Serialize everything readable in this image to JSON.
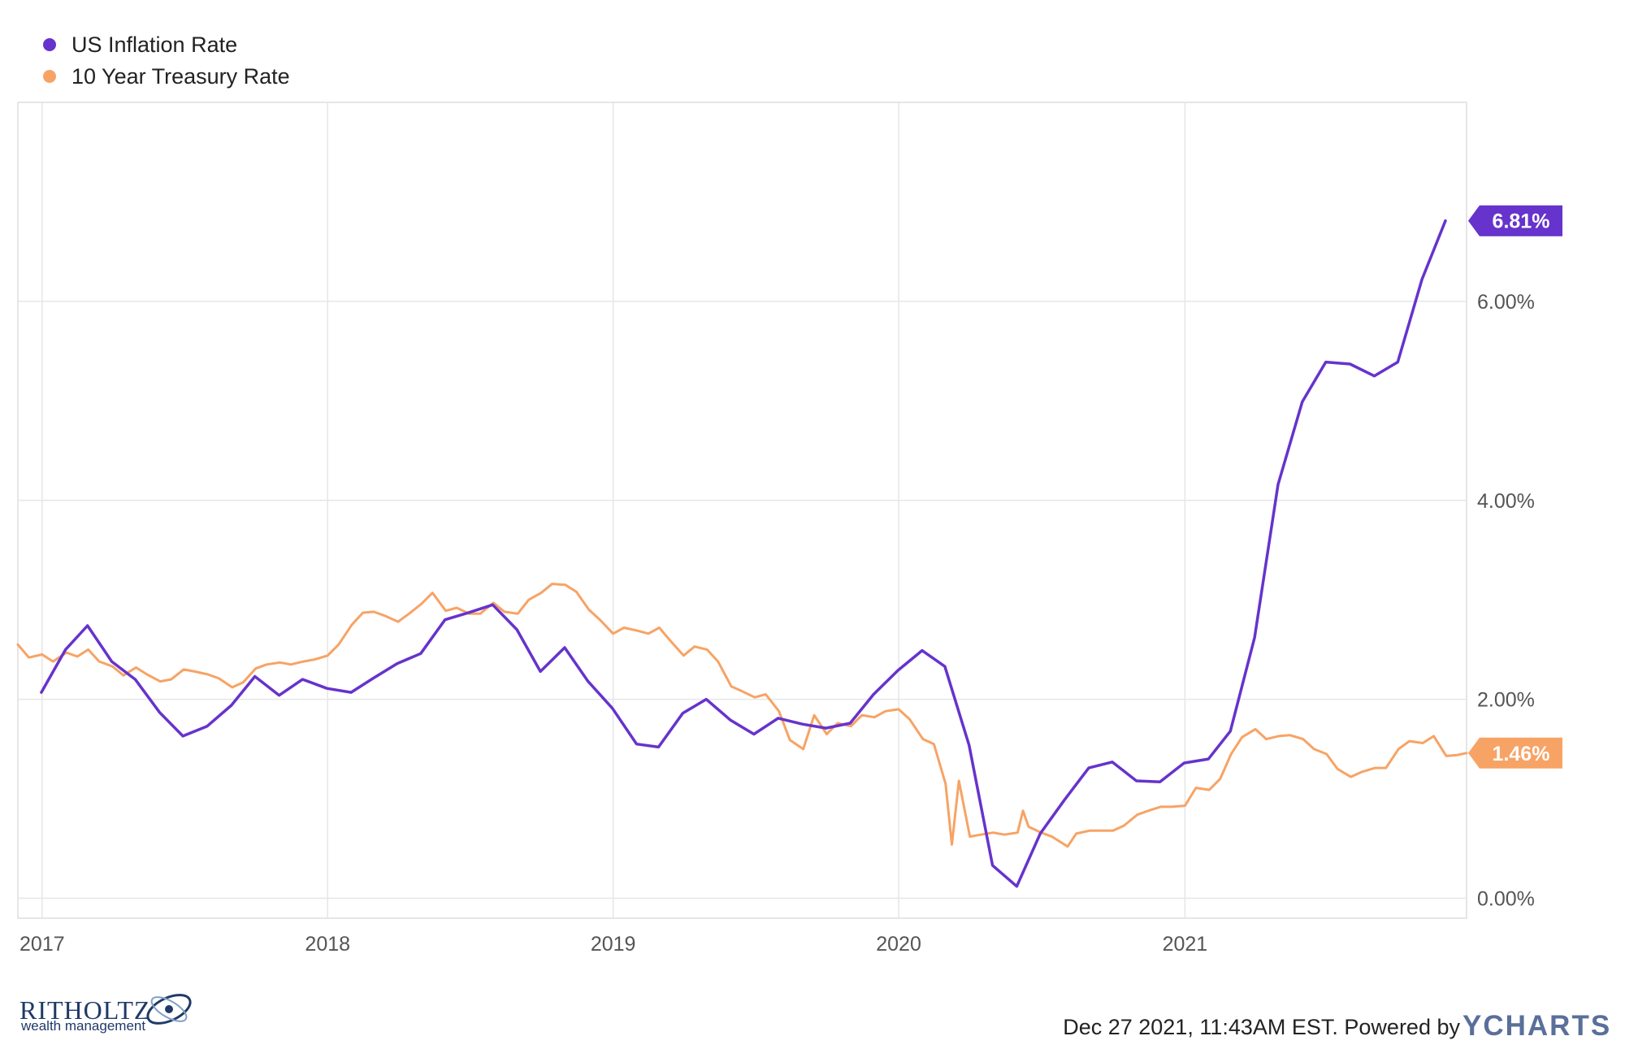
{
  "chart_data": {
    "type": "line",
    "xlabel": "",
    "ylabel": "",
    "x_tick_labels": [
      "2017",
      "2018",
      "2019",
      "2020",
      "2021"
    ],
    "y_tick_labels": [
      "0.00%",
      "2.00%",
      "4.00%",
      "6.00%"
    ],
    "y_ticks": [
      0,
      2,
      4,
      6
    ],
    "ylim": [
      -0.2,
      8.0
    ],
    "xlim": [
      "2016-12-01",
      "2021-12-27"
    ],
    "grid": true,
    "legend_position": "top-left",
    "series": [
      {
        "name": "US Inflation Rate",
        "color": "#6633cc",
        "last_value_label": "6.81%",
        "points": [
          [
            "2016-12-31",
            2.07
          ],
          [
            "2017-01-31",
            2.5
          ],
          [
            "2017-02-28",
            2.74
          ],
          [
            "2017-03-31",
            2.38
          ],
          [
            "2017-04-30",
            2.2
          ],
          [
            "2017-05-31",
            1.87
          ],
          [
            "2017-06-30",
            1.63
          ],
          [
            "2017-07-31",
            1.73
          ],
          [
            "2017-08-31",
            1.94
          ],
          [
            "2017-09-30",
            2.23
          ],
          [
            "2017-10-31",
            2.04
          ],
          [
            "2017-11-30",
            2.2
          ],
          [
            "2017-12-31",
            2.11
          ],
          [
            "2018-01-31",
            2.07
          ],
          [
            "2018-02-28",
            2.21
          ],
          [
            "2018-03-31",
            2.36
          ],
          [
            "2018-04-30",
            2.46
          ],
          [
            "2018-05-31",
            2.8
          ],
          [
            "2018-06-30",
            2.87
          ],
          [
            "2018-07-31",
            2.95
          ],
          [
            "2018-08-31",
            2.7
          ],
          [
            "2018-09-30",
            2.28
          ],
          [
            "2018-10-31",
            2.52
          ],
          [
            "2018-11-30",
            2.18
          ],
          [
            "2018-12-31",
            1.91
          ],
          [
            "2019-01-31",
            1.55
          ],
          [
            "2019-02-28",
            1.52
          ],
          [
            "2019-03-31",
            1.86
          ],
          [
            "2019-04-30",
            2.0
          ],
          [
            "2019-05-31",
            1.79
          ],
          [
            "2019-06-30",
            1.65
          ],
          [
            "2019-07-31",
            1.81
          ],
          [
            "2019-08-31",
            1.75
          ],
          [
            "2019-09-30",
            1.71
          ],
          [
            "2019-10-31",
            1.76
          ],
          [
            "2019-11-30",
            2.05
          ],
          [
            "2019-12-31",
            2.29
          ],
          [
            "2020-01-31",
            2.49
          ],
          [
            "2020-02-29",
            2.33
          ],
          [
            "2020-03-31",
            1.54
          ],
          [
            "2020-04-30",
            0.33
          ],
          [
            "2020-05-31",
            0.12
          ],
          [
            "2020-06-30",
            0.65
          ],
          [
            "2020-07-31",
            0.99
          ],
          [
            "2020-08-31",
            1.31
          ],
          [
            "2020-09-30",
            1.37
          ],
          [
            "2020-10-31",
            1.18
          ],
          [
            "2020-11-30",
            1.17
          ],
          [
            "2020-12-31",
            1.36
          ],
          [
            "2021-01-31",
            1.4
          ],
          [
            "2021-02-28",
            1.68
          ],
          [
            "2021-03-31",
            2.62
          ],
          [
            "2021-04-30",
            4.16
          ],
          [
            "2021-05-31",
            4.99
          ],
          [
            "2021-06-30",
            5.39
          ],
          [
            "2021-07-31",
            5.37
          ],
          [
            "2021-08-31",
            5.25
          ],
          [
            "2021-09-30",
            5.39
          ],
          [
            "2021-10-31",
            6.22
          ],
          [
            "2021-11-30",
            6.81
          ]
        ]
      },
      {
        "name": "10 Year Treasury Rate",
        "color": "#f7a365",
        "last_value_label": "1.46%",
        "points": [
          [
            "2016-12-01",
            2.55
          ],
          [
            "2016-12-15",
            2.42
          ],
          [
            "2017-01-01",
            2.45
          ],
          [
            "2017-01-15",
            2.38
          ],
          [
            "2017-02-01",
            2.47
          ],
          [
            "2017-02-15",
            2.43
          ],
          [
            "2017-03-01",
            2.5
          ],
          [
            "2017-03-15",
            2.38
          ],
          [
            "2017-04-01",
            2.33
          ],
          [
            "2017-04-15",
            2.24
          ],
          [
            "2017-05-01",
            2.32
          ],
          [
            "2017-05-15",
            2.25
          ],
          [
            "2017-06-01",
            2.18
          ],
          [
            "2017-06-15",
            2.2
          ],
          [
            "2017-07-01",
            2.3
          ],
          [
            "2017-07-15",
            2.28
          ],
          [
            "2017-08-01",
            2.25
          ],
          [
            "2017-08-15",
            2.21
          ],
          [
            "2017-09-01",
            2.12
          ],
          [
            "2017-09-15",
            2.17
          ],
          [
            "2017-10-01",
            2.31
          ],
          [
            "2017-10-15",
            2.35
          ],
          [
            "2017-11-01",
            2.37
          ],
          [
            "2017-11-15",
            2.35
          ],
          [
            "2017-12-01",
            2.38
          ],
          [
            "2017-12-15",
            2.4
          ],
          [
            "2018-01-01",
            2.44
          ],
          [
            "2018-01-15",
            2.55
          ],
          [
            "2018-02-01",
            2.75
          ],
          [
            "2018-02-15",
            2.87
          ],
          [
            "2018-03-01",
            2.88
          ],
          [
            "2018-03-15",
            2.84
          ],
          [
            "2018-04-01",
            2.78
          ],
          [
            "2018-04-15",
            2.86
          ],
          [
            "2018-05-01",
            2.96
          ],
          [
            "2018-05-15",
            3.07
          ],
          [
            "2018-06-01",
            2.89
          ],
          [
            "2018-06-15",
            2.92
          ],
          [
            "2018-07-01",
            2.86
          ],
          [
            "2018-07-15",
            2.86
          ],
          [
            "2018-08-01",
            2.97
          ],
          [
            "2018-08-15",
            2.88
          ],
          [
            "2018-09-01",
            2.86
          ],
          [
            "2018-09-15",
            3.0
          ],
          [
            "2018-10-01",
            3.07
          ],
          [
            "2018-10-15",
            3.16
          ],
          [
            "2018-11-01",
            3.15
          ],
          [
            "2018-11-15",
            3.08
          ],
          [
            "2018-12-01",
            2.9
          ],
          [
            "2018-12-15",
            2.8
          ],
          [
            "2019-01-01",
            2.66
          ],
          [
            "2019-01-15",
            2.72
          ],
          [
            "2019-02-01",
            2.69
          ],
          [
            "2019-02-15",
            2.66
          ],
          [
            "2019-03-01",
            2.72
          ],
          [
            "2019-03-15",
            2.59
          ],
          [
            "2019-04-01",
            2.44
          ],
          [
            "2019-04-15",
            2.53
          ],
          [
            "2019-05-01",
            2.5
          ],
          [
            "2019-05-15",
            2.38
          ],
          [
            "2019-06-01",
            2.13
          ],
          [
            "2019-06-15",
            2.08
          ],
          [
            "2019-07-01",
            2.02
          ],
          [
            "2019-07-15",
            2.05
          ],
          [
            "2019-08-01",
            1.88
          ],
          [
            "2019-08-15",
            1.59
          ],
          [
            "2019-09-01",
            1.5
          ],
          [
            "2019-09-15",
            1.84
          ],
          [
            "2019-10-01",
            1.65
          ],
          [
            "2019-10-15",
            1.76
          ],
          [
            "2019-11-01",
            1.73
          ],
          [
            "2019-11-15",
            1.84
          ],
          [
            "2019-12-01",
            1.82
          ],
          [
            "2019-12-15",
            1.88
          ],
          [
            "2020-01-01",
            1.9
          ],
          [
            "2020-01-15",
            1.8
          ],
          [
            "2020-02-01",
            1.6
          ],
          [
            "2020-02-15",
            1.55
          ],
          [
            "2020-03-01",
            1.15
          ],
          [
            "2020-03-09",
            0.54
          ],
          [
            "2020-03-18",
            1.18
          ],
          [
            "2020-04-01",
            0.62
          ],
          [
            "2020-04-15",
            0.64
          ],
          [
            "2020-05-01",
            0.66
          ],
          [
            "2020-05-15",
            0.64
          ],
          [
            "2020-06-01",
            0.66
          ],
          [
            "2020-06-08",
            0.88
          ],
          [
            "2020-06-15",
            0.72
          ],
          [
            "2020-07-01",
            0.66
          ],
          [
            "2020-07-15",
            0.62
          ],
          [
            "2020-08-04",
            0.52
          ],
          [
            "2020-08-15",
            0.65
          ],
          [
            "2020-09-01",
            0.68
          ],
          [
            "2020-09-15",
            0.68
          ],
          [
            "2020-10-01",
            0.68
          ],
          [
            "2020-10-15",
            0.73
          ],
          [
            "2020-11-01",
            0.84
          ],
          [
            "2020-11-15",
            0.88
          ],
          [
            "2020-12-01",
            0.92
          ],
          [
            "2020-12-15",
            0.92
          ],
          [
            "2021-01-01",
            0.93
          ],
          [
            "2021-01-15",
            1.11
          ],
          [
            "2021-02-01",
            1.09
          ],
          [
            "2021-02-15",
            1.2
          ],
          [
            "2021-03-01",
            1.45
          ],
          [
            "2021-03-15",
            1.62
          ],
          [
            "2021-04-01",
            1.7
          ],
          [
            "2021-04-15",
            1.6
          ],
          [
            "2021-05-01",
            1.63
          ],
          [
            "2021-05-15",
            1.64
          ],
          [
            "2021-06-01",
            1.6
          ],
          [
            "2021-06-15",
            1.5
          ],
          [
            "2021-07-01",
            1.45
          ],
          [
            "2021-07-15",
            1.3
          ],
          [
            "2021-08-01",
            1.22
          ],
          [
            "2021-08-15",
            1.27
          ],
          [
            "2021-09-01",
            1.31
          ],
          [
            "2021-09-15",
            1.31
          ],
          [
            "2021-10-01",
            1.5
          ],
          [
            "2021-10-15",
            1.58
          ],
          [
            "2021-11-01",
            1.56
          ],
          [
            "2021-11-15",
            1.63
          ],
          [
            "2021-12-01",
            1.43
          ],
          [
            "2021-12-15",
            1.44
          ],
          [
            "2021-12-27",
            1.46
          ]
        ]
      }
    ]
  },
  "footer": {
    "timestamp": "Dec 27 2021, 11:43AM EST. Powered by",
    "brand": "YCHARTS"
  },
  "logo": {
    "name": "RITHOLTZ",
    "tagline": "wealth management"
  }
}
